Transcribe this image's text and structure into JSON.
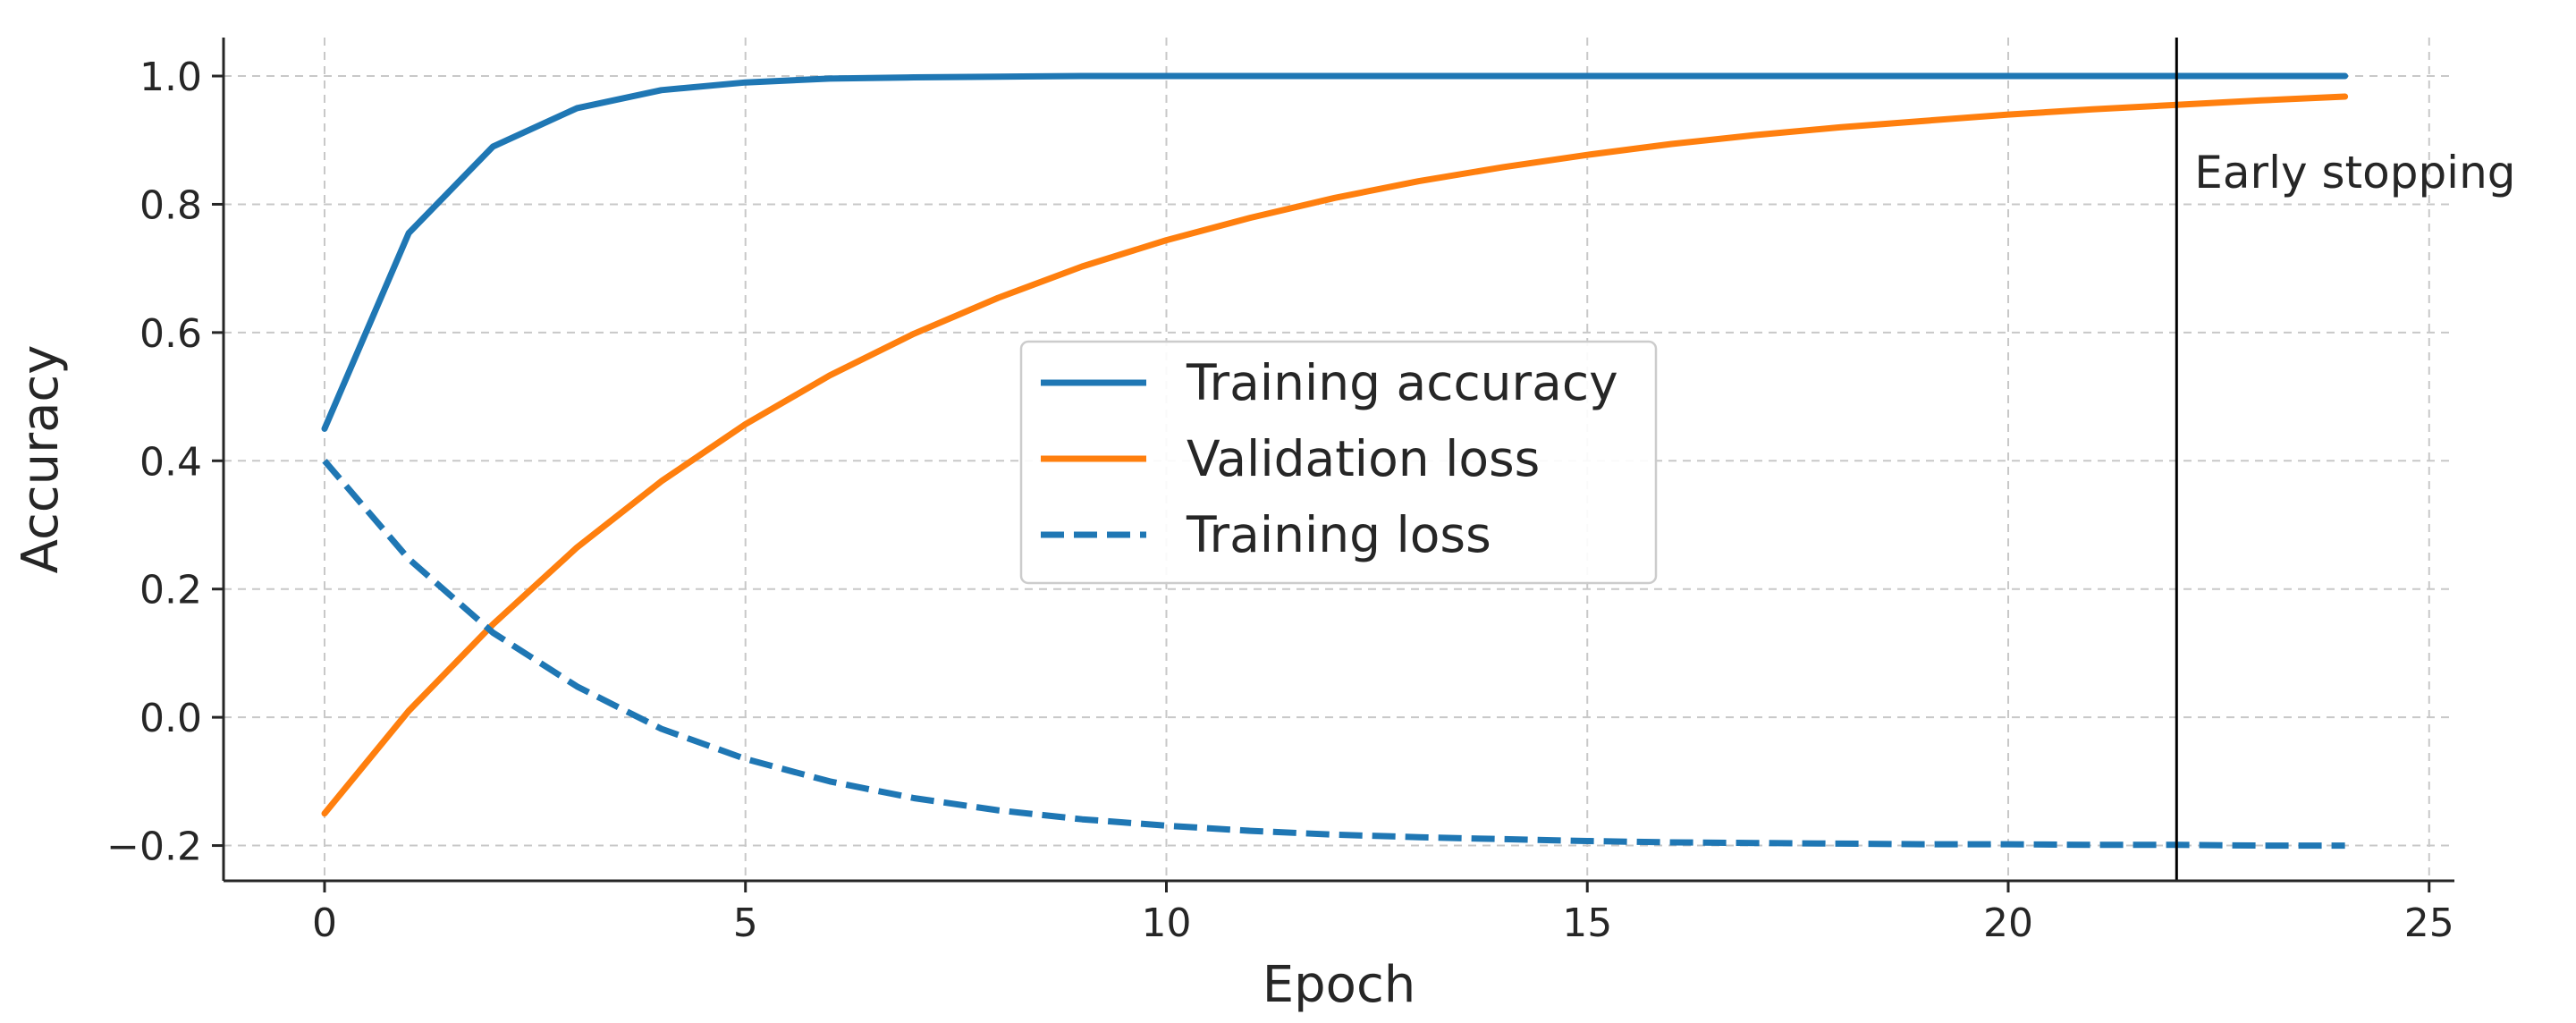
{
  "chart_data": {
    "type": "line",
    "title": "",
    "xlabel": "Epoch",
    "ylabel": "Accuracy",
    "xlim": [
      -1.2,
      25.3
    ],
    "ylim": [
      -0.255,
      1.06
    ],
    "xticks": [
      0,
      5,
      10,
      15,
      20,
      25
    ],
    "xtick_labels": [
      "0",
      "5",
      "10",
      "15",
      "20",
      "25"
    ],
    "yticks": [
      -0.2,
      0.0,
      0.2,
      0.4,
      0.6,
      0.8,
      1.0
    ],
    "ytick_labels": [
      "−0.2",
      "0.0",
      "0.2",
      "0.4",
      "0.6",
      "0.8",
      "1.0"
    ],
    "grid": true,
    "legend_position": "center",
    "x": [
      0,
      1,
      2,
      3,
      4,
      5,
      6,
      7,
      8,
      9,
      10,
      11,
      12,
      13,
      14,
      15,
      16,
      17,
      18,
      19,
      20,
      21,
      22,
      23,
      24
    ],
    "series": [
      {
        "name": "Training accuracy",
        "color": "#1f77b4",
        "style": "solid",
        "values": [
          0.45,
          0.755,
          0.89,
          0.95,
          0.978,
          0.99,
          0.996,
          0.998,
          0.999,
          1.0,
          1.0,
          1.0,
          1.0,
          1.0,
          1.0,
          1.0,
          1.0,
          1.0,
          1.0,
          1.0,
          1.0,
          1.0,
          1.0,
          1.0,
          1.0
        ]
      },
      {
        "name": "Validation loss",
        "color": "#ff7f0e",
        "style": "solid",
        "values": [
          -0.15,
          0.01,
          0.145,
          0.265,
          0.368,
          0.457,
          0.533,
          0.598,
          0.654,
          0.703,
          0.744,
          0.779,
          0.81,
          0.836,
          0.858,
          0.877,
          0.894,
          0.908,
          0.92,
          0.93,
          0.94,
          0.948,
          0.955,
          0.962,
          0.968
        ]
      },
      {
        "name": "Training loss",
        "color": "#1f77b4",
        "style": "dashed",
        "values": [
          0.4,
          0.247,
          0.132,
          0.048,
          -0.018,
          -0.065,
          -0.1,
          -0.126,
          -0.145,
          -0.159,
          -0.169,
          -0.177,
          -0.183,
          -0.187,
          -0.19,
          -0.193,
          -0.195,
          -0.196,
          -0.197,
          -0.198,
          -0.198,
          -0.199,
          -0.199,
          -0.2,
          -0.2
        ]
      }
    ],
    "annotations": [
      {
        "type": "vline",
        "x": 22,
        "color": "#000000",
        "text": "Early stopping"
      }
    ]
  }
}
